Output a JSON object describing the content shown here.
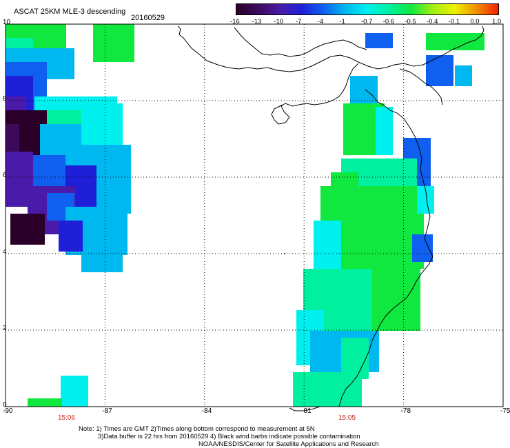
{
  "header": {
    "title": "ASCAT 25KM MLE-3 descending",
    "date": "20160529"
  },
  "colorbar": {
    "tick_labels": [
      "-16",
      "-13",
      "-10",
      "-7",
      "-4",
      "-1",
      "-0.7",
      "-0.6",
      "-0.5",
      "-0.4",
      "-0.1",
      "0.0",
      "1.0"
    ],
    "colors": [
      "#2a0028",
      "#3c0a5a",
      "#4a1aa8",
      "#1f1fd8",
      "#1060f0",
      "#00b8f0",
      "#00f0f0",
      "#00f0a0",
      "#10e840",
      "#a0f010",
      "#f0f000",
      "#f09000",
      "#f02000"
    ]
  },
  "map": {
    "lon_ticks": [
      "-90",
      "-87",
      "-84",
      "-81",
      "-78",
      "-75"
    ],
    "lat_ticks": [
      "0",
      "2",
      "4",
      "6",
      "8",
      "10"
    ],
    "pass_times": [
      "15:06",
      "15:05"
    ],
    "line_color": "#000000",
    "cell_colors": {
      "very_low": "#2a0028",
      "low": "#3c0a5a",
      "purple": "#4a1aa8",
      "blue": "#1f1fd8",
      "blue2": "#1060f0",
      "light_blue": "#00b8f0",
      "cyan": "#00f0f0",
      "aqua_green": "#00f0a0",
      "green": "#10e840"
    }
  },
  "footer": {
    "note_line1": "Note: 1) Times are GMT 2)Times along bottom correspond to measurement at 5N",
    "note_line2": "3)Data buffer is 22 hrs from 20160529 4) Black wind barbs indicate possible contamination",
    "note_line3": "NOAA/NESDIS/Center for Satellite Applications and Research"
  }
}
